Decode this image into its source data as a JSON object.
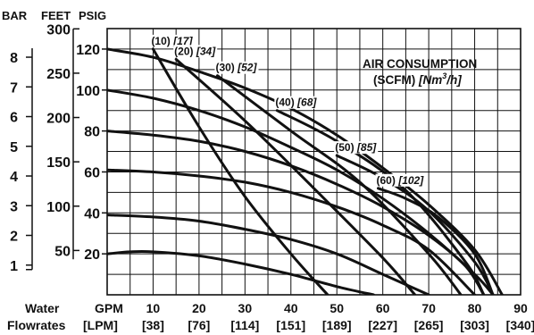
{
  "chart_data": {
    "type": "line",
    "axes_header": {
      "bar": "BAR",
      "feet": "FEET",
      "psig": "PSIG"
    },
    "left_scales": {
      "bar": {
        "ticks": [
          "1",
          "2",
          "3",
          "4",
          "5",
          "6",
          "7",
          "8"
        ],
        "values": [
          1,
          2,
          3,
          4,
          5,
          6,
          7,
          8
        ]
      },
      "feet": {
        "ticks": [
          "50",
          "100",
          "150",
          "200",
          "250",
          "300"
        ],
        "values": [
          50,
          100,
          150,
          200,
          250,
          300
        ]
      },
      "psig": {
        "ticks": [
          "20",
          "40",
          "60",
          "80",
          "100",
          "120"
        ],
        "values": [
          20,
          40,
          60,
          80,
          100,
          120
        ]
      }
    },
    "x_axis": {
      "row_label": "Water",
      "row_label2": "Flowrates",
      "unit_gpm": "GPM",
      "unit_lpm": "[LPM]",
      "gpm_ticks": [
        "10",
        "20",
        "30",
        "40",
        "50",
        "60",
        "70",
        "80",
        "90"
      ],
      "gpm_values": [
        10,
        20,
        30,
        40,
        50,
        60,
        70,
        80,
        90
      ],
      "lpm_ticks": [
        "[38]",
        "[76]",
        "[114]",
        "[151]",
        "[189]",
        "[227]",
        "[265]",
        "[303]",
        "[340]"
      ]
    },
    "xlim": [
      0,
      90
    ],
    "ylim": [
      0,
      130
    ],
    "grid": true,
    "annotation": {
      "line1": "AIR CONSUMPTION",
      "line2_a": "(SCFM) ",
      "line2_b": "[Nm",
      "line2_sup": "3",
      "line2_c": "/h]"
    },
    "pressure_curves": [
      {
        "name": "120 psig",
        "x": [
          0,
          10,
          20,
          30,
          40,
          50,
          60,
          70,
          80,
          86
        ],
        "y": [
          120,
          116,
          109,
          101,
          91,
          78,
          62,
          44,
          22,
          0
        ]
      },
      {
        "name": "100 psig",
        "x": [
          0,
          10,
          20,
          30,
          40,
          50,
          60,
          70,
          80,
          84
        ],
        "y": [
          100,
          96,
          90,
          82,
          72,
          61,
          47,
          30,
          10,
          0
        ]
      },
      {
        "name": "80 psig",
        "x": [
          0,
          10,
          20,
          30,
          40,
          50,
          60,
          70,
          78,
          82
        ],
        "y": [
          80,
          78,
          75,
          70,
          63,
          54,
          43,
          29,
          14,
          0
        ]
      },
      {
        "name": "60 psig",
        "x": [
          0,
          10,
          20,
          30,
          40,
          50,
          60,
          70,
          80
        ],
        "y": [
          61,
          60,
          58,
          55,
          50,
          43,
          34,
          22,
          0
        ]
      },
      {
        "name": "40 psig",
        "x": [
          0,
          10,
          20,
          30,
          40,
          50,
          60,
          70
        ],
        "y": [
          39,
          38,
          36,
          32,
          27,
          20,
          10,
          0
        ]
      },
      {
        "name": "20 psig",
        "x": [
          0,
          5,
          10,
          20,
          30,
          40,
          50,
          58
        ],
        "y": [
          20,
          21,
          21,
          19,
          15,
          10,
          4,
          0
        ]
      }
    ],
    "air_curves": [
      {
        "label": "(10)",
        "label_metric": "[17]",
        "x": [
          10,
          20,
          30,
          40,
          48
        ],
        "y": [
          120,
          82,
          48,
          20,
          0
        ]
      },
      {
        "label": "(20)",
        "label_metric": "[34]",
        "x": [
          15,
          30,
          45,
          60,
          67
        ],
        "y": [
          115,
          85,
          52,
          18,
          0
        ]
      },
      {
        "label": "(30)",
        "label_metric": "[52]",
        "x": [
          24,
          40,
          55,
          70,
          77
        ],
        "y": [
          107,
          80,
          55,
          20,
          0
        ]
      },
      {
        "label": "(40)",
        "label_metric": "[68]",
        "x": [
          37,
          50,
          65,
          78,
          82
        ],
        "y": [
          90,
          75,
          51,
          16,
          0
        ]
      },
      {
        "label": "(50)",
        "label_metric": "[85]",
        "x": [
          50,
          60,
          70,
          80,
          84
        ],
        "y": [
          68,
          57,
          41,
          16,
          0
        ]
      },
      {
        "label": "(60)",
        "label_metric": "[102]",
        "x": [
          59,
          65,
          72,
          80,
          84
        ],
        "y": [
          52,
          47,
          38,
          20,
          0
        ]
      }
    ]
  }
}
